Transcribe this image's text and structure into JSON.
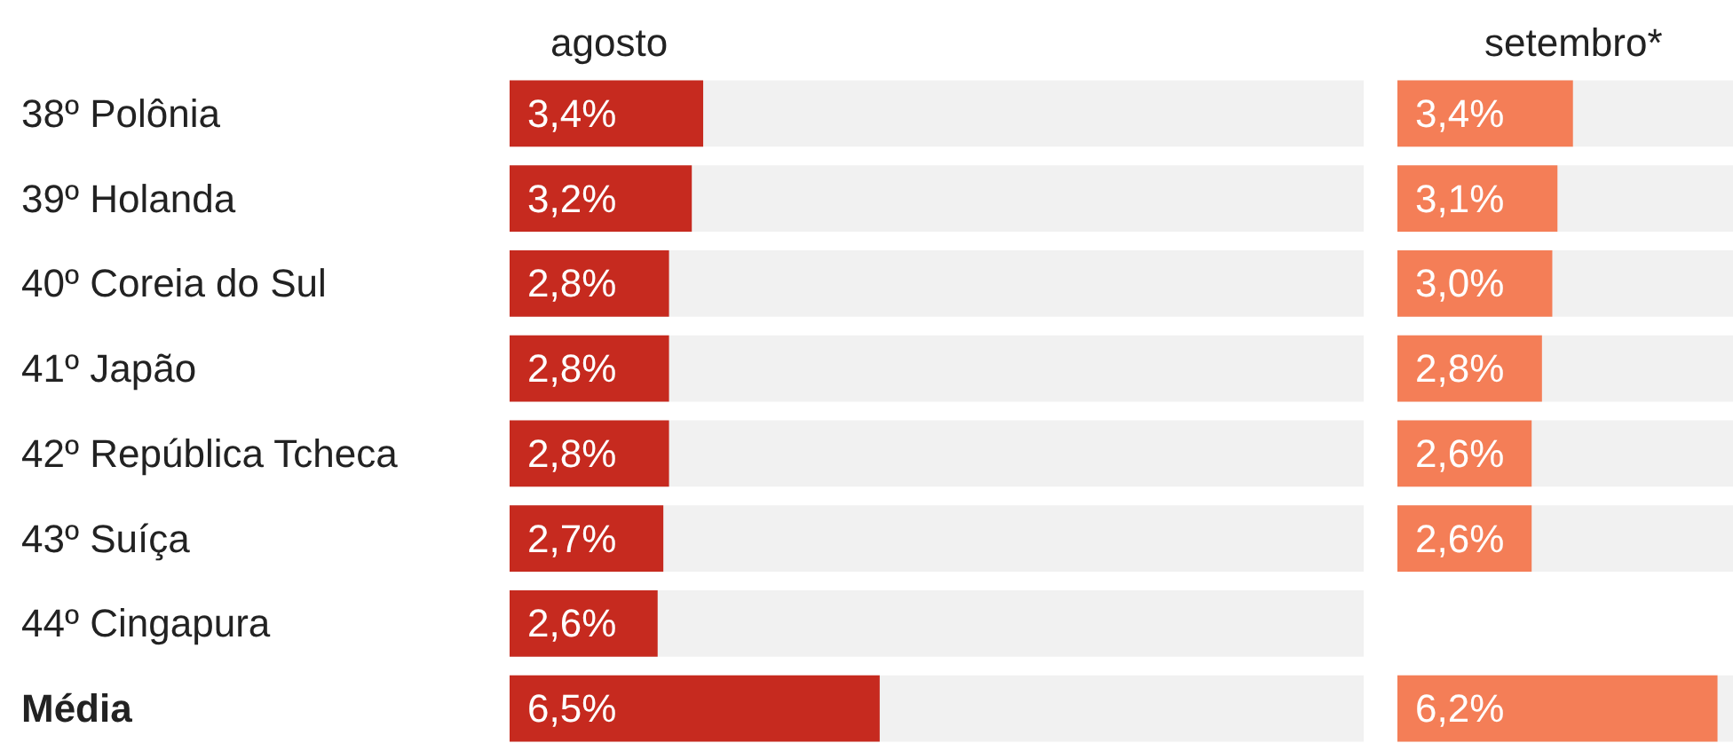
{
  "chart_data": [
    {
      "type": "bar",
      "orientation": "horizontal",
      "title": "agosto",
      "categories": [
        "38º Polônia",
        "39º Holanda",
        "40º Coreia do Sul",
        "41º Japão",
        "42º República Tcheca",
        "43º Suíça",
        "44º Cingapura",
        "Média"
      ],
      "values": [
        3.4,
        3.2,
        2.8,
        2.8,
        2.8,
        2.7,
        2.6,
        6.5
      ],
      "value_labels": [
        "3,4%",
        "3,2%",
        "2,8%",
        "2,8%",
        "2,8%",
        "2,7%",
        "2,6%",
        "6,5%"
      ],
      "color": "#c62a1f",
      "xlim": [
        0,
        15
      ],
      "tick_labels": "y",
      "grid": false
    },
    {
      "type": "bar",
      "orientation": "horizontal",
      "title": "setembro*",
      "categories": [
        null,
        null,
        null,
        null,
        null,
        null,
        null,
        null
      ],
      "values": [
        3.4,
        3.1,
        3.0,
        2.8,
        2.6,
        2.6,
        null,
        6.2
      ],
      "value_labels": [
        "3,4%",
        "3,1%",
        "3,0%",
        "2,8%",
        "2,6%",
        "2,6%",
        null,
        "6,2%"
      ],
      "color": "#f47e57",
      "xlim": [
        0,
        6.5
      ],
      "tick_labels": false,
      "grid": false
    }
  ]
}
